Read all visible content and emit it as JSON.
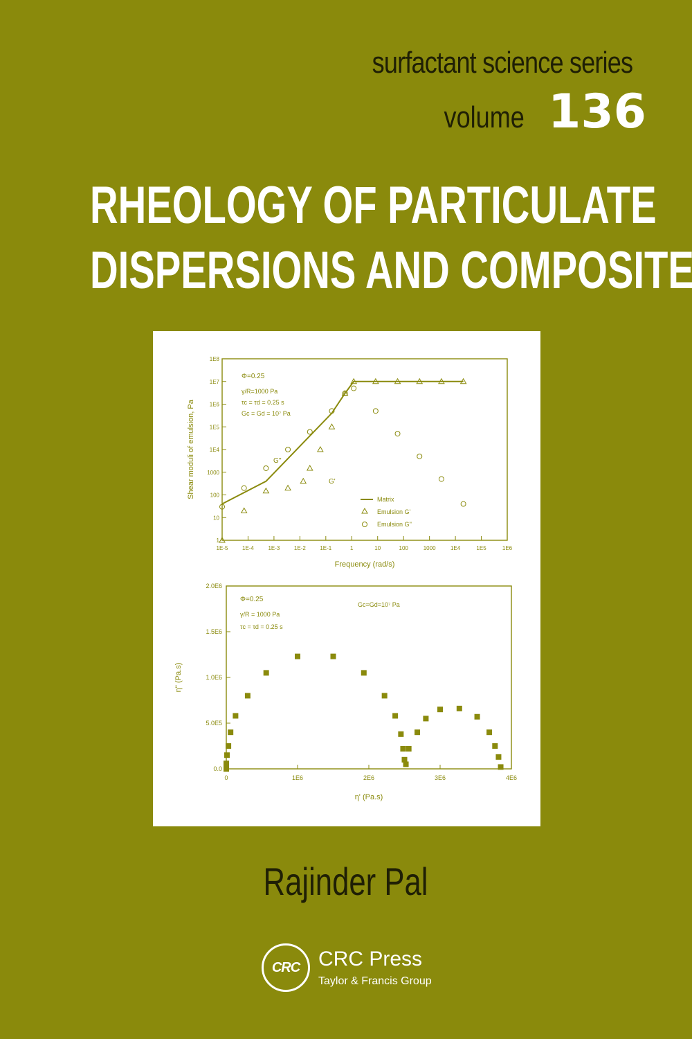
{
  "series": {
    "name": "surfactant science series",
    "volume_label": "volume",
    "volume_number": "136"
  },
  "title": {
    "line1": "RHEOLOGY OF PARTICULATE",
    "line2": "DISPERSIONS AND COMPOSITES"
  },
  "author": "Rajinder Pal",
  "publisher": {
    "logo_text": "CRC",
    "name": "CRC Press",
    "group": "Taylor & Francis Group"
  },
  "colors": {
    "background": "#8a8a0c",
    "figure_ink": "#8a8a0c",
    "title": "#ffffff",
    "author": "#1f1f05"
  },
  "chart_data": [
    {
      "type": "line",
      "ylabel": "Shear moduli of emulsion, Pa",
      "xlabel": "Frequency (rad/s)",
      "x_scale": "log",
      "y_scale": "log",
      "xlim": [
        1e-05,
        100000000
      ],
      "ylim": [
        1,
        100000000
      ],
      "x_ticks": [
        "1E-5",
        "1E-4",
        "1E-3",
        "1E-2",
        "1E-1",
        "1",
        "10",
        "100",
        "1000",
        "1E4",
        "1E5",
        "1E6"
      ],
      "y_ticks": [
        "1",
        "10",
        "100",
        "1000",
        "1E4",
        "1E5",
        "1E6",
        "1E7",
        "1E8"
      ],
      "annotations": [
        "Φ=0.25",
        "γ/R=1000 Pa",
        "τc = τd = 0.25 s",
        "Gc = Gd = 10⁷ Pa",
        "G''",
        "G'"
      ],
      "legend_position": "bottom-right",
      "series": [
        {
          "name": "Matrix",
          "marker": "line",
          "x": [
            1e-05,
            0.001,
            0.01,
            0.1,
            1,
            4,
            10,
            100,
            1000,
            10000,
            100000,
            1000000
          ],
          "y": [
            40,
            400,
            4000,
            40000,
            400000,
            3000000,
            10000000,
            10000000,
            10000000,
            10000000,
            10000000,
            10000000
          ]
        },
        {
          "name": "Emulsion G'",
          "marker": "triangle",
          "x": [
            1e-05,
            0.0001,
            0.001,
            0.01,
            0.05,
            0.1,
            0.3,
            1,
            4,
            10,
            100,
            1000,
            10000,
            100000,
            1000000
          ],
          "y": [
            1,
            20,
            150,
            200,
            400,
            1500,
            10000,
            100000,
            3000000,
            10000000,
            10000000,
            10000000,
            10000000,
            10000000,
            10000000
          ]
        },
        {
          "name": "Emulsion G''",
          "marker": "circle",
          "x": [
            1e-05,
            0.0001,
            0.001,
            0.01,
            0.1,
            1,
            4,
            10,
            100,
            1000,
            10000,
            100000,
            1000000
          ],
          "y": [
            30,
            200,
            1500,
            10000,
            60000,
            500000,
            3000000,
            5000000,
            500000,
            50000,
            5000,
            500,
            40
          ]
        }
      ]
    },
    {
      "type": "scatter",
      "xlabel": "η' (Pa.s)",
      "ylabel": "η'' (Pa.s)",
      "xlim": [
        0,
        4000000
      ],
      "ylim": [
        0,
        2000000
      ],
      "x_ticks": [
        "0",
        "1E6",
        "2E6",
        "3E6",
        "4E6"
      ],
      "y_ticks": [
        "0.0",
        "5.0E5",
        "1.0E6",
        "1.5E6",
        "2.0E6"
      ],
      "annotations": [
        "Φ=0.25",
        "γ/R = 1000 Pa",
        "τc = τd = 0.25 s",
        "Gc=Gd=10⁷ Pa"
      ],
      "points": [
        [
          0,
          0
        ],
        [
          0,
          60000
        ],
        [
          10000,
          150000
        ],
        [
          30000,
          250000
        ],
        [
          60000,
          400000
        ],
        [
          130000,
          580000
        ],
        [
          300000,
          800000
        ],
        [
          560000,
          1050000
        ],
        [
          1000000,
          1230000
        ],
        [
          1500000,
          1230000
        ],
        [
          1930000,
          1050000
        ],
        [
          2220000,
          800000
        ],
        [
          2370000,
          580000
        ],
        [
          2450000,
          380000
        ],
        [
          2480000,
          220000
        ],
        [
          2500000,
          100000
        ],
        [
          2520000,
          50000
        ],
        [
          2560000,
          220000
        ],
        [
          2680000,
          400000
        ],
        [
          2800000,
          550000
        ],
        [
          3000000,
          650000
        ],
        [
          3270000,
          660000
        ],
        [
          3520000,
          570000
        ],
        [
          3690000,
          400000
        ],
        [
          3770000,
          250000
        ],
        [
          3820000,
          130000
        ],
        [
          3850000,
          20000
        ]
      ]
    }
  ]
}
